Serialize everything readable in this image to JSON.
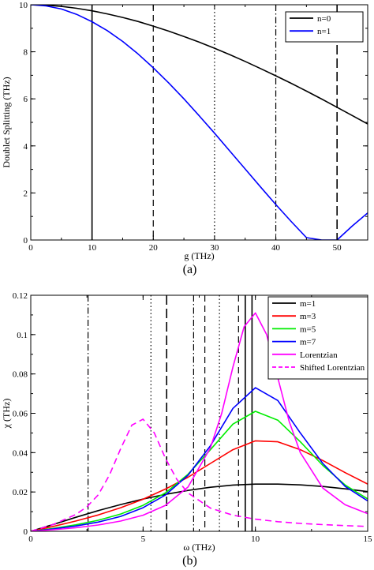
{
  "chart_data": [
    {
      "type": "line",
      "panel_label": "(a)",
      "xlabel": "g (THz)",
      "ylabel": "Doublet Splitting (THz)",
      "xlim": [
        0,
        55
      ],
      "ylim": [
        0,
        10
      ],
      "xticks": [
        0,
        10,
        20,
        30,
        40,
        50
      ],
      "yticks": [
        0,
        2,
        4,
        6,
        8,
        10
      ],
      "grid": false,
      "legend_position": "top-right",
      "series": [
        {
          "name": "n=0",
          "color": "#000000",
          "x": [
            0,
            2.5,
            5,
            7.5,
            10,
            12.5,
            15,
            17.5,
            20,
            22.5,
            25,
            27.5,
            30,
            32.5,
            35,
            37.5,
            40,
            42.5,
            45,
            47.5,
            50,
            52.5,
            55
          ],
          "y": [
            10.0,
            9.98,
            9.93,
            9.85,
            9.74,
            9.61,
            9.46,
            9.29,
            9.09,
            8.88,
            8.65,
            8.41,
            8.15,
            7.88,
            7.59,
            7.29,
            6.98,
            6.66,
            6.33,
            5.99,
            5.64,
            5.29,
            4.93
          ]
        },
        {
          "name": "n=1",
          "color": "#0000ff",
          "x": [
            0,
            2.5,
            5,
            7.5,
            10,
            12.5,
            15,
            17.5,
            20,
            22.5,
            25,
            27.5,
            30,
            32.5,
            35,
            37.5,
            40,
            42.5,
            45,
            47.5,
            50,
            52.5,
            55
          ],
          "y": [
            10.0,
            9.95,
            9.82,
            9.59,
            9.28,
            8.9,
            8.44,
            7.91,
            7.32,
            6.68,
            6.0,
            5.28,
            4.54,
            3.78,
            3.02,
            2.26,
            1.51,
            0.79,
            0.1,
            0.0,
            0.0,
            0.6,
            1.15
          ]
        }
      ],
      "vertical_lines": [
        {
          "x": 10,
          "style": "solid"
        },
        {
          "x": 20,
          "style": "dashed"
        },
        {
          "x": 30,
          "style": "dotted"
        },
        {
          "x": 40,
          "style": "dashdot"
        },
        {
          "x": 50,
          "style": "longdash"
        }
      ]
    },
    {
      "type": "line",
      "panel_label": "(b)",
      "xlabel": "ω (THz)",
      "ylabel": "χ (THz)",
      "xlim": [
        0,
        15
      ],
      "ylim": [
        0,
        0.12
      ],
      "xticks": [
        0,
        5,
        10,
        15
      ],
      "yticks": [
        0,
        0.02,
        0.04,
        0.06,
        0.08,
        0.1,
        0.12
      ],
      "ytick_labels": [
        "0",
        "0.02",
        "0.04",
        "0.06",
        "0.08",
        "0.1",
        "0.12"
      ],
      "grid": false,
      "legend_position": "top-right",
      "series": [
        {
          "name": "m=1",
          "color": "#000000",
          "style": "solid",
          "x": [
            0,
            1,
            2,
            3,
            4,
            5,
            6,
            7,
            8,
            9,
            10,
            11,
            12,
            13,
            14,
            15
          ],
          "y": [
            0.0,
            0.0035,
            0.0071,
            0.0105,
            0.0136,
            0.0164,
            0.0188,
            0.0208,
            0.0224,
            0.0235,
            0.024,
            0.024,
            0.0236,
            0.0228,
            0.0216,
            0.0202
          ]
        },
        {
          "name": "m=3",
          "color": "#ff0000",
          "style": "solid",
          "x": [
            0,
            1,
            2,
            3,
            4,
            5,
            6,
            7,
            8,
            9,
            10,
            11,
            12,
            13,
            14,
            15
          ],
          "y": [
            0.0,
            0.0025,
            0.0052,
            0.0083,
            0.012,
            0.0163,
            0.0215,
            0.0275,
            0.0345,
            0.0415,
            0.046,
            0.0455,
            0.0415,
            0.036,
            0.0298,
            0.024
          ]
        },
        {
          "name": "m=5",
          "color": "#00ee00",
          "style": "solid",
          "x": [
            0,
            1,
            2,
            3,
            4,
            5,
            6,
            7,
            8,
            9,
            10,
            11,
            12,
            13,
            14,
            15
          ],
          "y": [
            0.0,
            0.0015,
            0.0033,
            0.0056,
            0.0088,
            0.0132,
            0.0196,
            0.029,
            0.0415,
            0.0545,
            0.061,
            0.0565,
            0.0455,
            0.0335,
            0.0235,
            0.0165
          ]
        },
        {
          "name": "m=7",
          "color": "#0000ff",
          "style": "solid",
          "x": [
            0,
            1,
            2,
            3,
            4,
            5,
            6,
            7,
            8,
            9,
            10,
            11,
            12,
            13,
            14,
            15
          ],
          "y": [
            0.0,
            0.0012,
            0.0027,
            0.0047,
            0.0076,
            0.012,
            0.0185,
            0.0285,
            0.0435,
            0.0625,
            0.073,
            0.0665,
            0.05,
            0.0345,
            0.0228,
            0.0155
          ]
        },
        {
          "name": "Lorentzian",
          "color": "#ff00ff",
          "style": "solid",
          "x": [
            0,
            1,
            2,
            3,
            4,
            5,
            6,
            7,
            8,
            8.5,
            9,
            9.5,
            10,
            10.5,
            11,
            11.5,
            12,
            13,
            14,
            15
          ],
          "y": [
            0.0,
            0.0008,
            0.0018,
            0.0032,
            0.0052,
            0.0082,
            0.0132,
            0.0225,
            0.0425,
            0.06,
            0.0835,
            0.104,
            0.111,
            0.1,
            0.078,
            0.056,
            0.04,
            0.022,
            0.0135,
            0.009
          ]
        },
        {
          "name": "Shifted Lorentzian",
          "color": "#ff00ff",
          "style": "dashed",
          "x": [
            0,
            1,
            2,
            2.5,
            3,
            3.5,
            4,
            4.5,
            5,
            5.5,
            6,
            6.5,
            7,
            8,
            9,
            10,
            11,
            12,
            13,
            14,
            15
          ],
          "y": [
            0.0,
            0.0035,
            0.0085,
            0.0125,
            0.0185,
            0.0285,
            0.042,
            0.054,
            0.057,
            0.05,
            0.037,
            0.0265,
            0.0195,
            0.0118,
            0.0082,
            0.0062,
            0.0049,
            0.004,
            0.0034,
            0.0029,
            0.0025
          ]
        }
      ],
      "vertical_lines": [
        {
          "x": 2.55,
          "style": "dashdot"
        },
        {
          "x": 5.35,
          "style": "dotted"
        },
        {
          "x": 6.05,
          "style": "longdash"
        },
        {
          "x": 7.25,
          "style": "dashdot"
        },
        {
          "x": 7.75,
          "style": "dashed"
        },
        {
          "x": 8.4,
          "style": "dotted"
        },
        {
          "x": 9.25,
          "style": "dashed"
        },
        {
          "x": 9.55,
          "style": "solid"
        },
        {
          "x": 9.85,
          "style": "solid"
        }
      ]
    }
  ]
}
